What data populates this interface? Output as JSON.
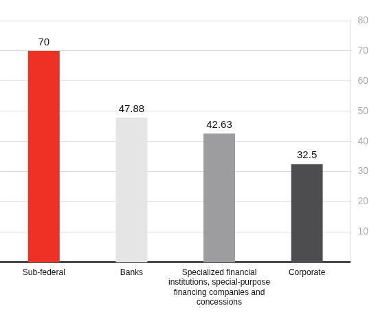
{
  "chart_data": {
    "type": "bar",
    "categories": [
      "Sub-federal",
      "Banks",
      "Specialized financial institutions, special-purpose financing companies and concessions",
      "Corporate"
    ],
    "values": [
      70,
      47.88,
      42.63,
      32.5
    ],
    "colors": [
      "#ee3124",
      "#e5e5e5",
      "#9d9d9f",
      "#4d4d4f"
    ],
    "ylim": [
      0,
      80
    ],
    "yticks": [
      10,
      20,
      30,
      40,
      50,
      60,
      70,
      80
    ],
    "grid": true,
    "data_labels": true
  }
}
